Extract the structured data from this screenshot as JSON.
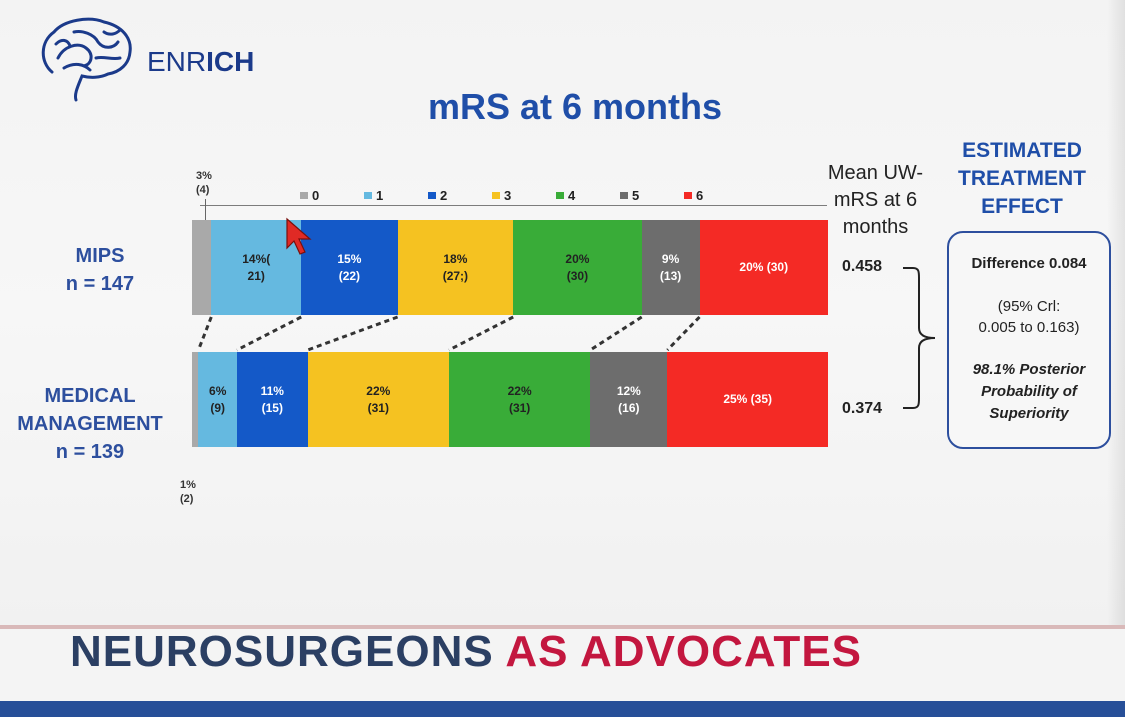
{
  "logo": {
    "text_prefix": "ENR",
    "text_suffix": "ICH"
  },
  "chart_data": {
    "type": "bar",
    "orientation": "horizontal-stacked-100",
    "title": "mRS at 6 months",
    "legend": [
      "0",
      "1",
      "2",
      "3",
      "4",
      "5",
      "6"
    ],
    "colors": [
      "#a9a9a9",
      "#65b9e0",
      "#1459c8",
      "#f5c221",
      "#39ac38",
      "#6d6d6d",
      "#f42a25"
    ],
    "rows": [
      {
        "label_lines": [
          "MIPS",
          "n = 147"
        ],
        "values": [
          3,
          14,
          15,
          18,
          20,
          9,
          20
        ],
        "labels": [
          [
            "",
            ""
          ],
          [
            "14%(",
            "21)"
          ],
          [
            "15%",
            "(22)"
          ],
          [
            "18%",
            "(27;)"
          ],
          [
            "20%",
            "(30)"
          ],
          [
            "9%",
            "(13)"
          ],
          [
            "20% (30)",
            ""
          ]
        ],
        "outside_note": [
          "3%",
          "(4)"
        ],
        "mean": "0.458"
      },
      {
        "label_lines": [
          "MEDICAL",
          "MANAGEMENT",
          "n = 139"
        ],
        "values": [
          1,
          6,
          11,
          22,
          22,
          12,
          25
        ],
        "labels": [
          [
            "",
            ""
          ],
          [
            "6%",
            "(9)"
          ],
          [
            "11%",
            "(15)"
          ],
          [
            "22%",
            "(31)"
          ],
          [
            "22%",
            "(31)"
          ],
          [
            "12%",
            "(16)"
          ],
          [
            "25% (35)",
            ""
          ]
        ],
        "outside_note": [
          "1%",
          "(2)"
        ],
        "mean": "0.374"
      }
    ],
    "mean_header": [
      "Mean UW-",
      "mRS at 6",
      "months"
    ]
  },
  "effect": {
    "header": [
      "ESTIMATED",
      "TREATMENT",
      "EFFECT"
    ],
    "difference": "Difference 0.084",
    "ci_1": "(95% Crl:",
    "ci_2": "0.005 to 0.163)",
    "prob_1": "98.1% Posterior",
    "prob_2": "Probability of",
    "prob_3": "Superiority"
  },
  "footer": {
    "part1": "NEUROSURGEONS",
    "part2": "AS ADVOCATES"
  }
}
